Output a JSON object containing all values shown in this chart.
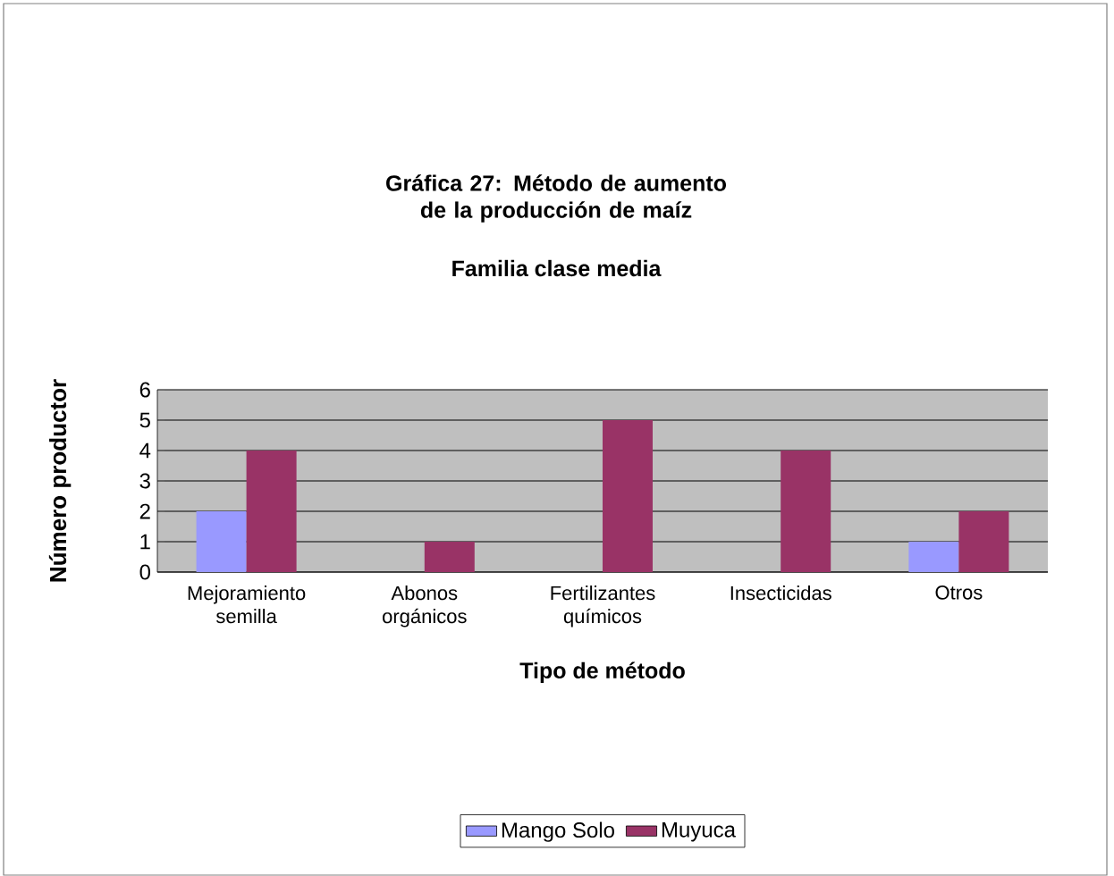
{
  "chart_data": {
    "type": "bar",
    "title": "Gráfica 27: Método de aumento de la producción de maíz",
    "subtitle": "Familia clase media",
    "xlabel": "Tipo de método",
    "ylabel": "Número productor",
    "categories": [
      "Mejoramiento semilla",
      "Abonos orgánicos",
      "Fertilizantes químicos",
      "Insecticidas",
      "Otros"
    ],
    "series": [
      {
        "name": "Mango Solo",
        "color": "#9999ff",
        "values": [
          2,
          0,
          0,
          0,
          1
        ]
      },
      {
        "name": "Muyuca",
        "color": "#993366",
        "values": [
          4,
          1,
          5,
          4,
          2
        ]
      }
    ],
    "ylim": [
      0,
      6
    ],
    "yticks": [
      0,
      1,
      2,
      3,
      4,
      5,
      6
    ],
    "grid": "y",
    "legend": "bottom"
  }
}
